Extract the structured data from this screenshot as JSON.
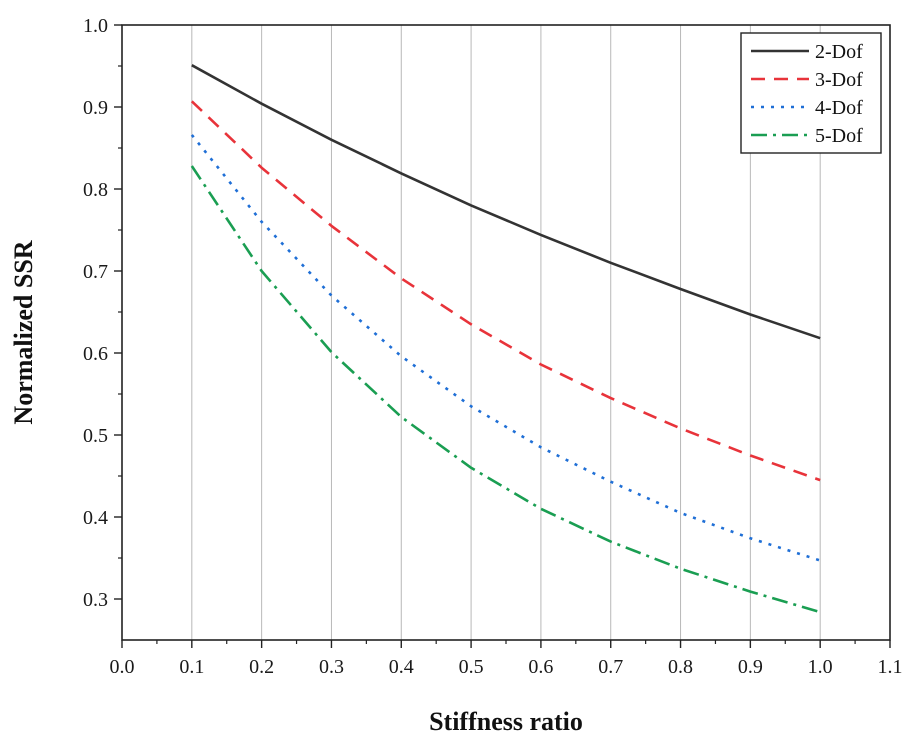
{
  "chart_data": {
    "type": "line",
    "title": "",
    "xlabel": "Stiffness ratio",
    "ylabel": "Normalized SSR",
    "xlim": [
      0.0,
      1.1
    ],
    "ylim": [
      0.25,
      1.0
    ],
    "x_ticks": [
      "0.0",
      "0.1",
      "0.2",
      "0.3",
      "0.4",
      "0.5",
      "0.6",
      "0.7",
      "0.8",
      "0.9",
      "1.0",
      "1.1"
    ],
    "y_ticks": [
      "0.3",
      "0.4",
      "0.5",
      "0.6",
      "0.7",
      "0.8",
      "0.9",
      "1.0"
    ],
    "grid": "vertical",
    "legend_position": "top-right",
    "x": [
      0.1,
      0.2,
      0.3,
      0.4,
      0.5,
      0.6,
      0.7,
      0.8,
      0.9,
      1.0
    ],
    "series": [
      {
        "name": "2-Dof",
        "color": "#333333",
        "dash": "solid",
        "values": [
          0.951,
          0.904,
          0.86,
          0.819,
          0.78,
          0.744,
          0.71,
          0.678,
          0.647,
          0.618
        ]
      },
      {
        "name": "3-Dof",
        "color": "#e8333a",
        "dash": "dashed",
        "values": [
          0.907,
          0.826,
          0.755,
          0.691,
          0.635,
          0.586,
          0.545,
          0.508,
          0.475,
          0.445
        ]
      },
      {
        "name": "4-Dof",
        "color": "#1f6fd6",
        "dash": "dotted",
        "values": [
          0.866,
          0.76,
          0.67,
          0.596,
          0.535,
          0.485,
          0.443,
          0.405,
          0.374,
          0.347
        ]
      },
      {
        "name": "5-Dof",
        "color": "#1a9e52",
        "dash": "dashdot",
        "values": [
          0.828,
          0.7,
          0.601,
          0.522,
          0.46,
          0.41,
          0.37,
          0.337,
          0.309,
          0.284
        ]
      }
    ]
  }
}
